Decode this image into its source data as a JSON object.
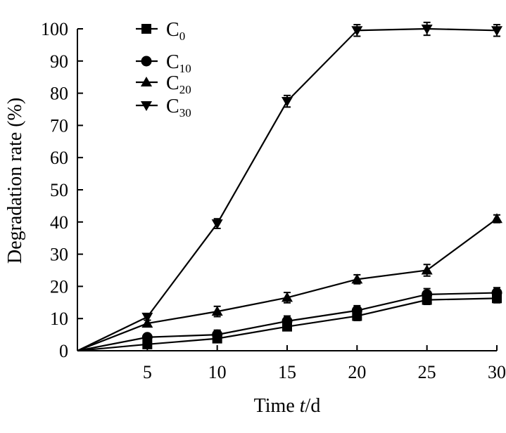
{
  "chart_data": {
    "type": "line",
    "xlabel": {
      "prefix": "Time ",
      "var": "t",
      "suffix": "/d"
    },
    "ylabel": "Degradation rate (%)",
    "xlim": [
      0,
      30
    ],
    "ylim": [
      0,
      100
    ],
    "xticks": [
      5,
      10,
      15,
      20,
      25,
      30
    ],
    "xtick_labels": [
      "5",
      "10",
      "15",
      "20",
      "25",
      "30"
    ],
    "yticks": [
      0,
      10,
      20,
      30,
      40,
      50,
      60,
      70,
      80,
      90,
      100
    ],
    "ytick_labels": [
      "0",
      "10",
      "20",
      "30",
      "40",
      "50",
      "60",
      "70",
      "80",
      "90",
      "100"
    ],
    "grid": false,
    "legend_position": "top-left",
    "x": [
      0,
      5,
      10,
      15,
      20,
      25,
      30
    ],
    "series": [
      {
        "name": "C",
        "sub": "0",
        "marker": "square",
        "values": [
          0,
          2,
          3.8,
          7.5,
          10.8,
          15.8,
          16.3
        ],
        "errors": [
          0,
          1.0,
          1.2,
          1.2,
          1.4,
          1.4,
          1.4
        ]
      },
      {
        "name": "C",
        "sub": "10",
        "marker": "circle",
        "values": [
          0,
          4.2,
          5,
          9.2,
          12.5,
          17.5,
          18
        ],
        "errors": [
          0,
          1.0,
          1.4,
          1.6,
          1.5,
          1.8,
          1.6
        ]
      },
      {
        "name": "C",
        "sub": "20",
        "marker": "triangle-up",
        "values": [
          0,
          8.5,
          12.2,
          16.5,
          22.2,
          25,
          41
        ],
        "errors": [
          0,
          1.0,
          1.6,
          1.6,
          1.4,
          1.8,
          1.2
        ]
      },
      {
        "name": "C",
        "sub": "30",
        "marker": "triangle-down",
        "values": [
          0,
          10.5,
          39.5,
          77.5,
          99.5,
          100,
          99.5
        ],
        "errors": [
          0,
          1.0,
          1.5,
          1.8,
          1.8,
          2.0,
          1.8
        ]
      }
    ]
  }
}
